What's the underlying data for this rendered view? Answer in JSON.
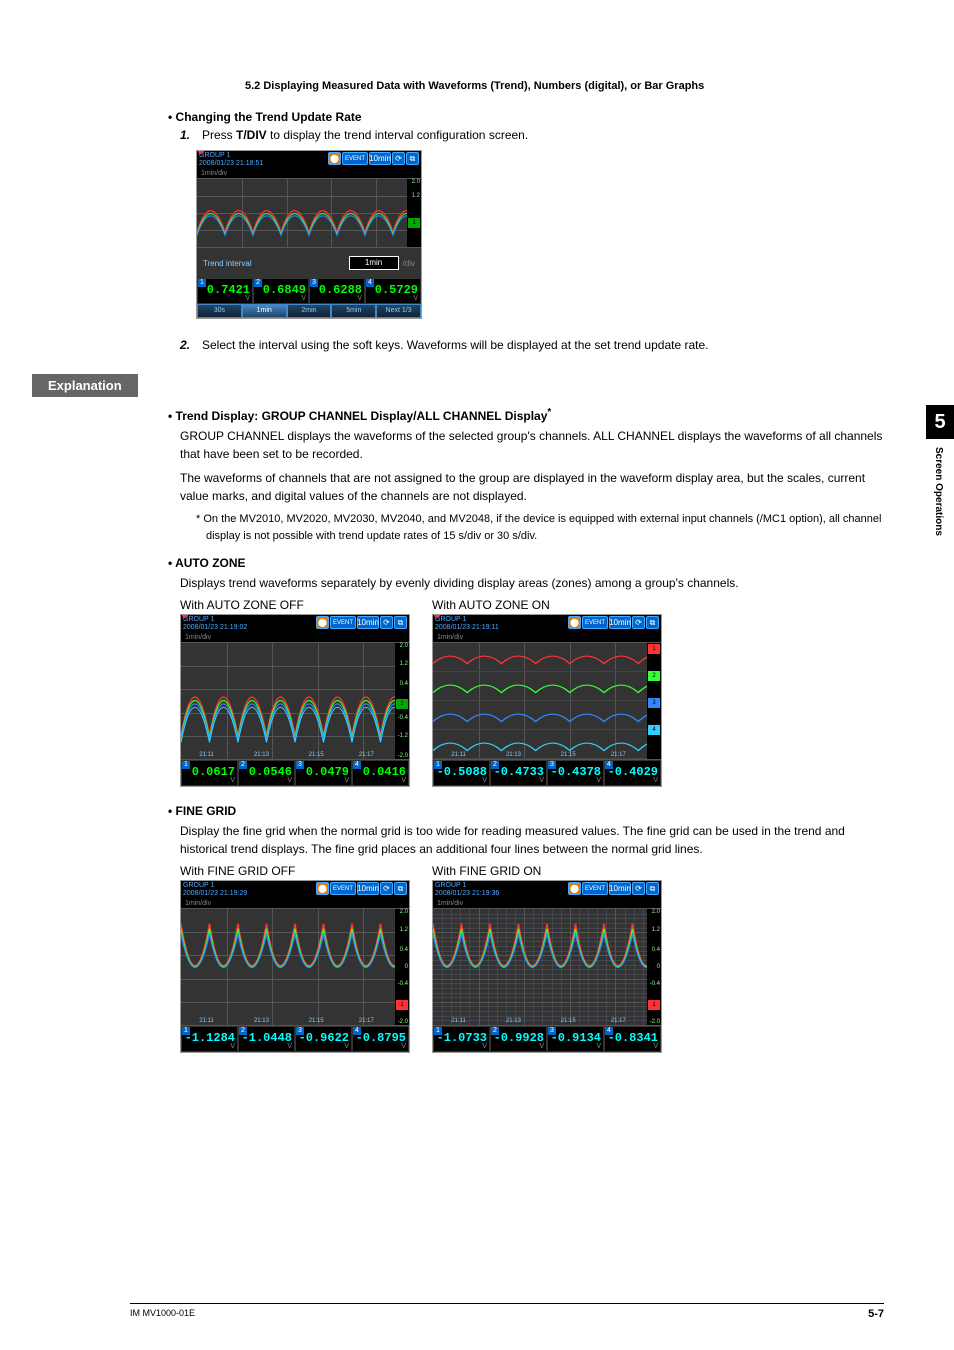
{
  "section_header": "5.2  Displaying Measured Data with Waveforms (Trend), Numbers (digital), or Bar Graphs",
  "h1": "Changing the Trend Update Rate",
  "step1_num": "1.",
  "step1": "Press T/DIV to display the trend interval configuration screen.",
  "step2_num": "2.",
  "step2": "Select the interval using the soft keys. Waveforms will be displayed at the set trend update rate.",
  "explanation": "Explanation",
  "h2": "Trend Display: GROUP CHANNEL Display/ALL CHANNEL Display",
  "h2_sup": "*",
  "p1": "GROUP CHANNEL displays the waveforms of the selected group's channels. ALL CHANNEL displays the waveforms of all channels that have been set to be recorded.",
  "p2": "The waveforms of channels that are not assigned to the group are displayed in the waveform display area, but the scales, current value marks, and digital values of the channels are not displayed.",
  "fn": "*   On the MV2010, MV2020, MV2030, MV2040, and MV2048, if the device is equipped with external input channels (/MC1 option), all channel display is not possible with trend update rates of 15 s/div or 30 s/div.",
  "h3": "AUTO ZONE",
  "p3": "Displays trend waveforms separately by evenly dividing display areas (zones) among a group's channels.",
  "az_off": "With AUTO ZONE OFF",
  "az_on": "With AUTO ZONE ON",
  "h4": "FINE GRID",
  "p4": "Display the fine grid when the normal grid is too wide for reading measured values. The fine grid can be used in the trend and historical trend displays. The fine grid places an additional four lines between the normal grid lines.",
  "fg_off": "With FINE GRID OFF",
  "fg_on": "With FINE GRID ON",
  "footer_left": "IM MV1000-01E",
  "footer_right": "5-7",
  "tab_num": "5",
  "tab_text": "Screen Operations",
  "ss1": {
    "group": "GROUP 1",
    "datetime": "2008/01/23 21:18:51",
    "rate": "1min/div",
    "trend_label": "Trend interval",
    "trend_val": "1min",
    "trend_unit": "/div",
    "digits": [
      "0.7421",
      "0.6849",
      "0.6288",
      "0.5729"
    ],
    "softkeys": [
      "30s",
      "1min",
      "2min",
      "5min",
      "Next 1/3"
    ]
  },
  "ss_az_off": {
    "datetime": "2008/01/23 21:19:02",
    "digits": [
      "0.0617",
      "0.0546",
      "0.0479",
      "0.0416"
    ],
    "times": [
      "21:11",
      "21:13",
      "21:15",
      "21:17"
    ],
    "scale": [
      "2.0",
      "1.2",
      "0.4",
      "1",
      "-0.4",
      "-1.2",
      "-2.0"
    ]
  },
  "ss_az_on": {
    "datetime": "2008/01/23 21:19:11",
    "digits": [
      "-0.5088",
      "-0.4733",
      "-0.4378",
      "-0.4029"
    ],
    "times": [
      "21:11",
      "21:13",
      "21:15",
      "21:17"
    ]
  },
  "ss_fg_off": {
    "datetime": "2008/01/23 21:19:29",
    "digits": [
      "-1.1284",
      "-1.0448",
      "-0.9622",
      "-0.8795"
    ],
    "times": [
      "21:11",
      "21:13",
      "21:15",
      "21:17"
    ],
    "scale": [
      "2.0",
      "1.2",
      "0.4",
      "0",
      "-0.4",
      "1",
      "-2.0"
    ]
  },
  "ss_fg_on": {
    "datetime": "2008/01/23 21:19:36",
    "digits": [
      "-1.0733",
      "-0.9928",
      "-0.9134",
      "-0.8341"
    ],
    "times": [
      "21:11",
      "21:13",
      "21:15",
      "21:17"
    ],
    "scale": [
      "2.0",
      "1.2",
      "0.4",
      "0",
      "-0.4",
      "1",
      "-2.0"
    ]
  },
  "icon_text": {
    "event": "EVENT",
    "rate": "10min"
  },
  "colors": {
    "wave1": "#ff3333",
    "wave2": "#33ff33",
    "wave3": "#3388ff",
    "wave4": "#33ccff"
  }
}
